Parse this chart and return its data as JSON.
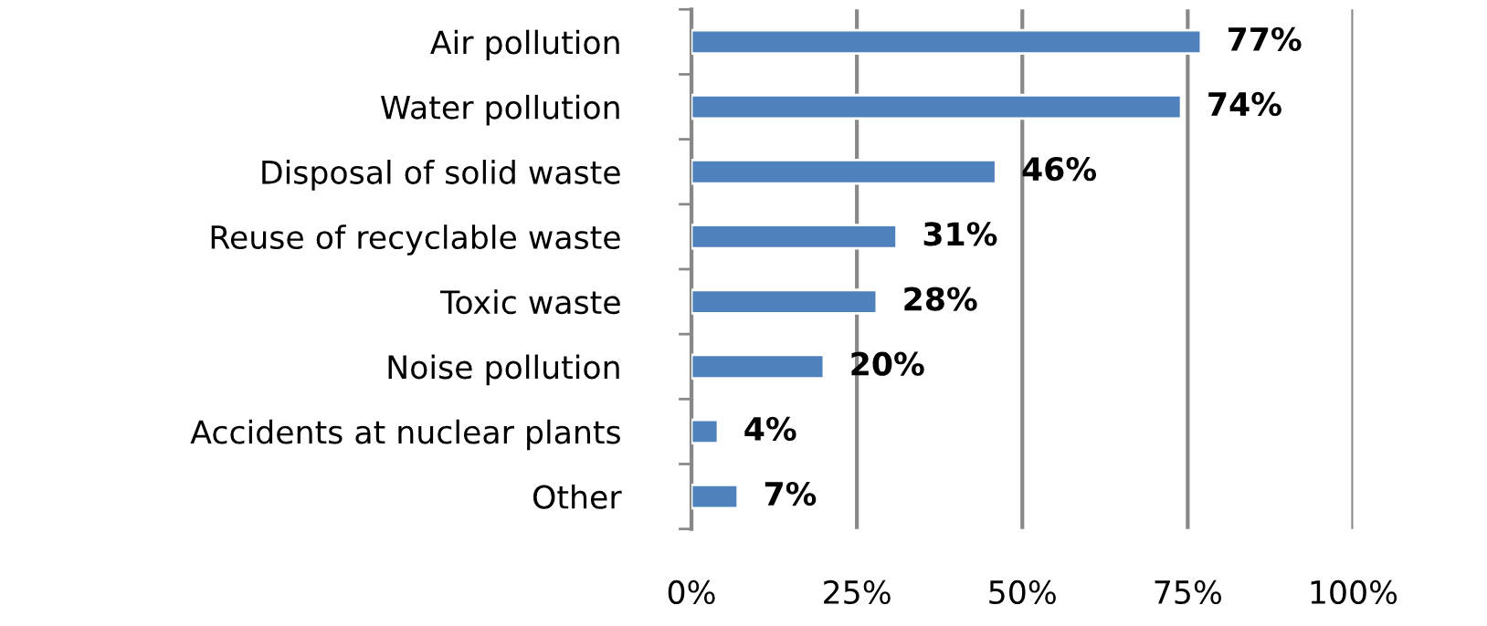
{
  "chart_data": {
    "type": "bar",
    "orientation": "horizontal",
    "categories": [
      "Air pollution",
      "Water pollution",
      "Disposal of solid waste",
      "Reuse of recyclable waste",
      "Toxic waste",
      "Noise pollution",
      "Accidents at nuclear plants",
      "Other"
    ],
    "values": [
      77,
      74,
      46,
      31,
      28,
      20,
      4,
      7
    ],
    "value_labels": [
      "77%",
      "74%",
      "46%",
      "31%",
      "28%",
      "20%",
      "4%",
      "7%"
    ],
    "color": "#4f81bd",
    "xlim": [
      0,
      100
    ],
    "xticks": [
      {
        "value": 0,
        "label": "0%"
      },
      {
        "value": 25,
        "label": "25%"
      },
      {
        "value": 50,
        "label": "50%"
      },
      {
        "value": 75,
        "label": "75%"
      },
      {
        "value": 100,
        "label": "100%"
      }
    ],
    "grid": "x"
  }
}
